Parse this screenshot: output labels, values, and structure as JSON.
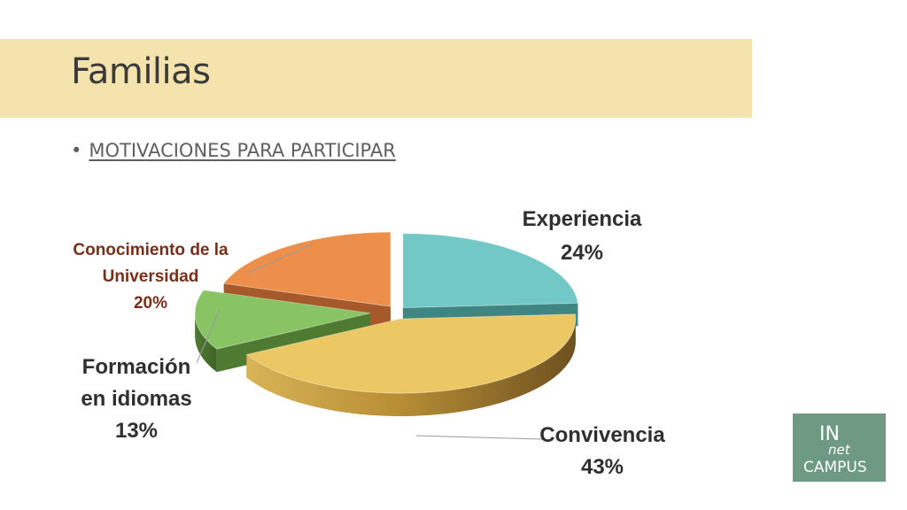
{
  "header": {
    "title": "Familias"
  },
  "bullets": [
    {
      "text": "MOTIVACIONES PARA PARTICIPAR"
    }
  ],
  "chart_data": {
    "type": "pie",
    "title": "",
    "labels": [
      "Experiencia",
      "Convivencia",
      "Formación en idiomas",
      "Conocimiento de la Universidad"
    ],
    "values": [
      24,
      43,
      13,
      20
    ],
    "value_labels": [
      "24%",
      "43%",
      "13%",
      "20%"
    ],
    "label_lines": [
      [
        "Experiencia",
        "24%"
      ],
      [
        "Convivencia",
        "43%"
      ],
      [
        "Formación",
        "en idiomas",
        "13%"
      ],
      [
        "Conocimiento de la",
        "Universidad",
        "20%"
      ]
    ],
    "colors": [
      "#72c8c6",
      "#ecc865",
      "#88c464",
      "#ed8f4b"
    ],
    "style": "3d-exploded"
  },
  "logo": {
    "lines": [
      "IN",
      "net",
      "CAMPUS"
    ]
  }
}
